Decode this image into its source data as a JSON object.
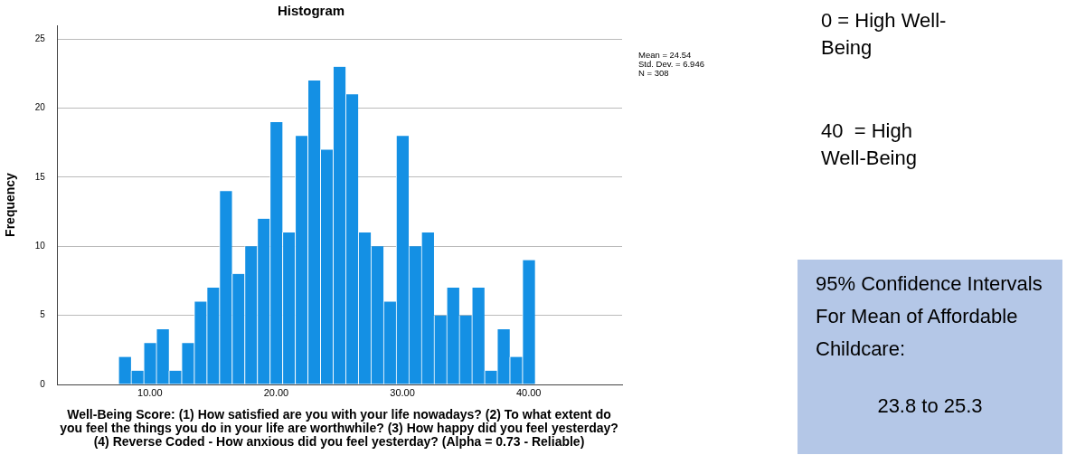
{
  "chart_data": {
    "type": "histogram",
    "title": "Histogram",
    "xlabel": "Well-Being Score: (1) How satisfied are you with your life nowadays? (2) To what extent do you feel the things you do in your life are worthwhile? (3) How happy did you feel yesterday? (4) Reverse Coded - How anxious did you feel yesterday? (Alpha = 0.73 - Reliable)",
    "ylabel": "Frequency",
    "bins": [
      7.5,
      8.5,
      9.5,
      10.5,
      11.5,
      12.5,
      13.5,
      14.5,
      15.5,
      16.5,
      17.5,
      18.5,
      19.5,
      20.5,
      21.5,
      22.5,
      23.5,
      24.5,
      25.5,
      26.5,
      27.5,
      28.5,
      29.5,
      30.5,
      31.5,
      32.5,
      33.5,
      34.5,
      35.5,
      36.5,
      37.5,
      38.5,
      39.5,
      40.5
    ],
    "values": [
      2,
      1,
      3,
      4,
      1,
      3,
      6,
      7,
      14,
      8,
      10,
      12,
      19,
      11,
      18,
      22,
      17,
      23,
      21,
      11,
      10,
      6,
      18,
      10,
      11,
      5,
      7,
      5,
      7,
      1,
      4,
      2,
      9
    ],
    "color": "#1490e4",
    "xlim": [
      2.7,
      47.4
    ],
    "xticks": [
      {
        "value": 10,
        "label": "10.00"
      },
      {
        "value": 20,
        "label": "20.00"
      },
      {
        "value": 30,
        "label": "30.00"
      },
      {
        "value": 40,
        "label": "40.00"
      }
    ],
    "ylim": [
      0,
      26
    ],
    "yticks": [
      0,
      5,
      10,
      15,
      20,
      25
    ],
    "grid": "y",
    "legend": false,
    "annotations": [
      "Mean = 24.54",
      "Std. Dev. = 6.946",
      "N = 308",
      "0 = High Well-Being",
      "40  = High Well-Being",
      "95% Confidence Intervals For Mean of Affordable Childcare:",
      "23.8 to 25.3"
    ]
  }
}
